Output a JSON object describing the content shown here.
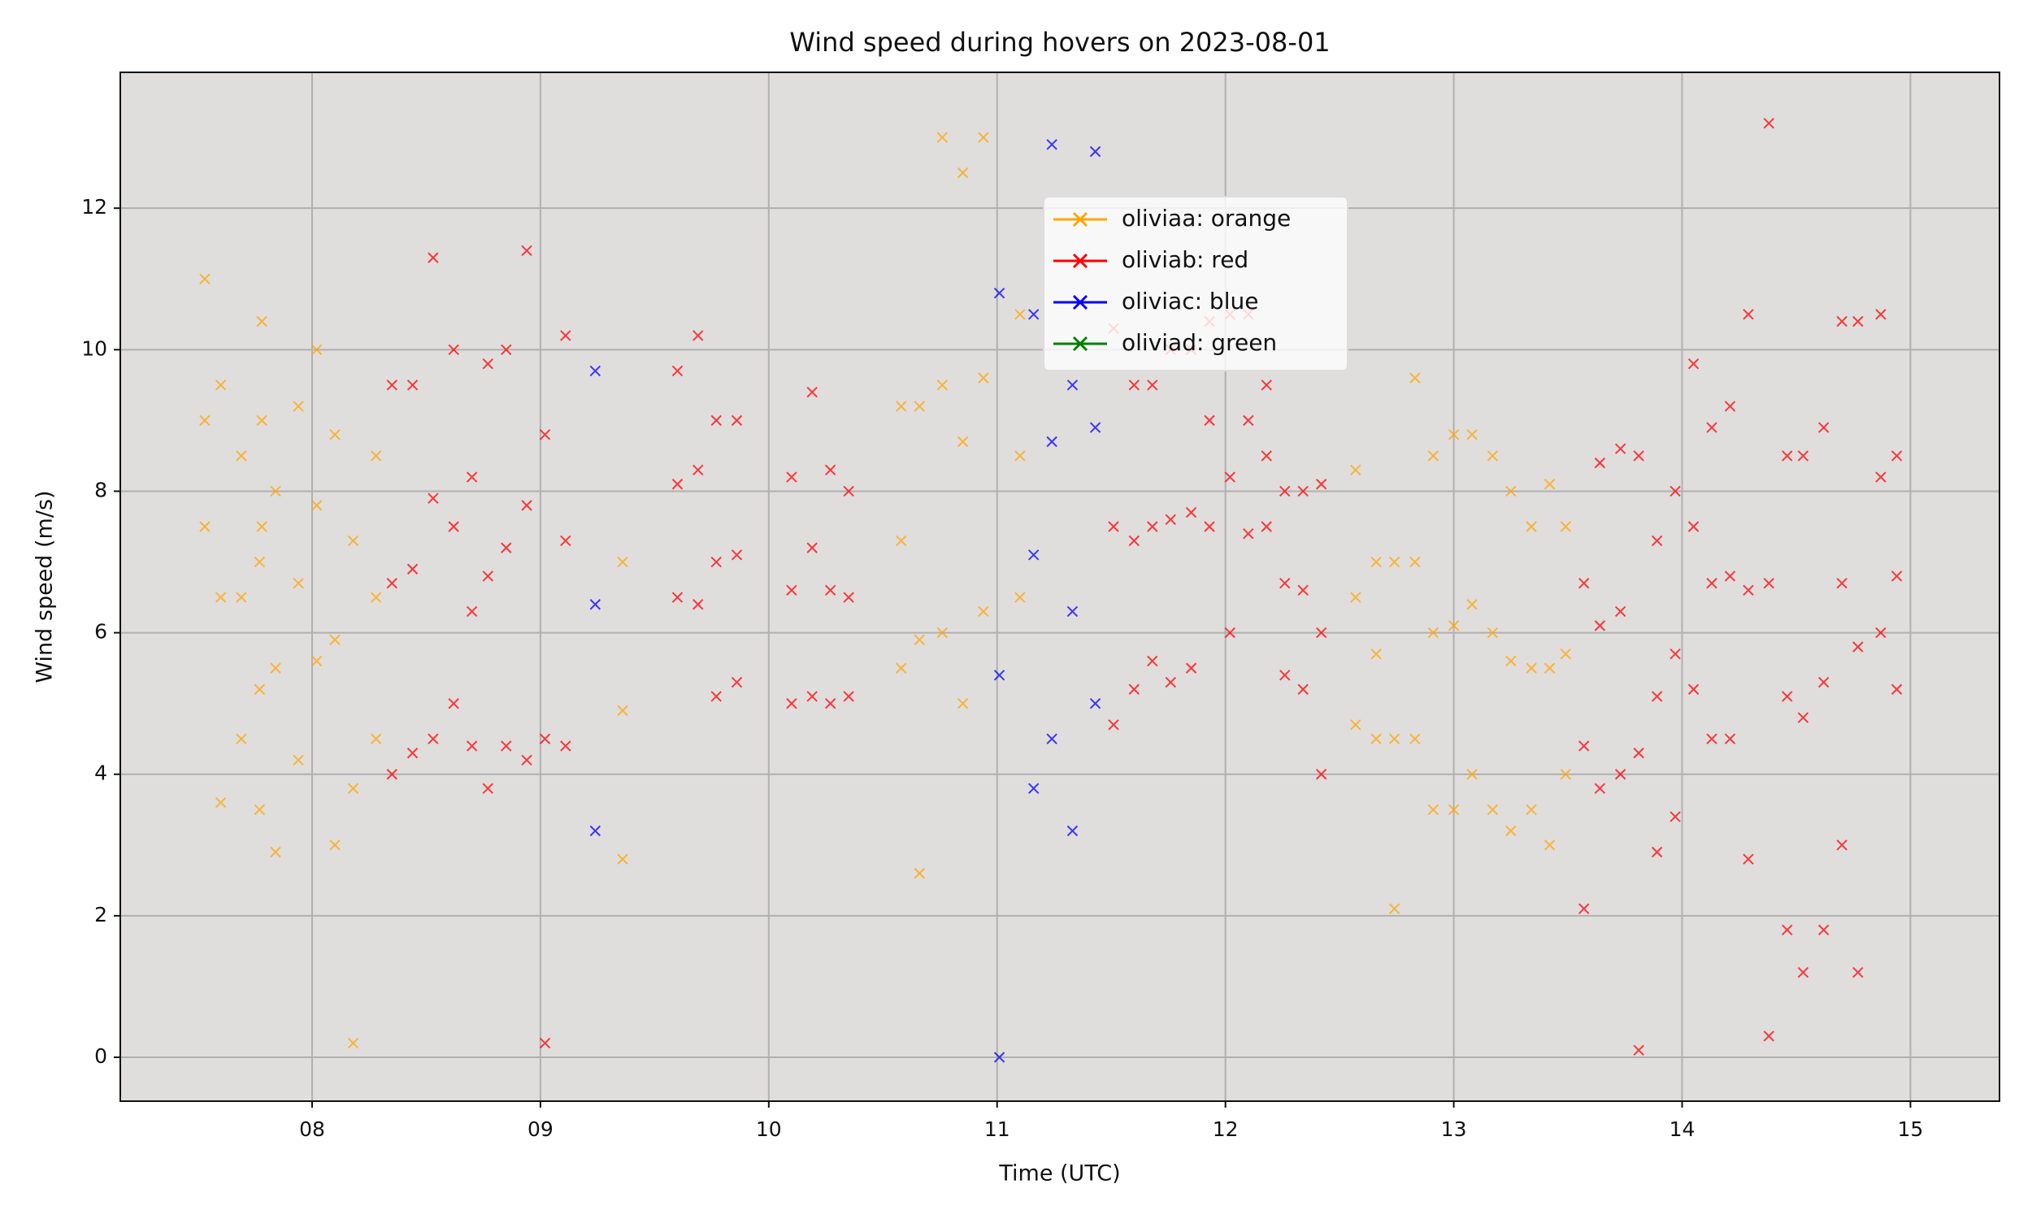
{
  "chart_data": {
    "type": "scatter",
    "title": "Wind speed during hovers on 2023-08-01",
    "x_label": "Time (UTC)",
    "y_label": "Wind speed (m/s)",
    "xlim": [
      7.16,
      15.39
    ],
    "ylim": [
      -0.62,
      13.92
    ],
    "xticks": [
      {
        "value": 8,
        "label": "08"
      },
      {
        "value": 9,
        "label": "09"
      },
      10,
      11,
      12,
      13,
      14,
      15
    ],
    "yticks": [
      0,
      2,
      4,
      6,
      8,
      10,
      12
    ],
    "grid": true,
    "legend_loc": "upper center",
    "marker": "x",
    "series": [
      {
        "name": "oliviaa: orange",
        "color": "#ffa500",
        "x": [
          7.53,
          7.53,
          7.53,
          7.6,
          7.6,
          7.6,
          7.69,
          7.69,
          7.69,
          7.77,
          7.77,
          7.77,
          7.78,
          7.78,
          7.78,
          7.84,
          7.84,
          7.84,
          7.94,
          7.94,
          7.94,
          8.02,
          8.02,
          8.02,
          8.1,
          8.1,
          8.1,
          8.18,
          8.18,
          8.18,
          8.28,
          8.28,
          8.28,
          9.36,
          9.36,
          9.36,
          10.58,
          10.58,
          10.58,
          10.66,
          10.66,
          10.66,
          10.76,
          10.76,
          10.76,
          10.85,
          10.85,
          10.85,
          10.94,
          10.94,
          10.94,
          11.1,
          11.1,
          11.1,
          12.57,
          12.57,
          12.57,
          12.66,
          12.66,
          12.66,
          12.74,
          12.74,
          12.74,
          12.83,
          12.83,
          12.83,
          12.91,
          12.91,
          12.91,
          13.0,
          13.0,
          13.0,
          13.08,
          13.08,
          13.08,
          13.17,
          13.17,
          13.17,
          13.25,
          13.25,
          13.25,
          13.34,
          13.34,
          13.34,
          13.42,
          13.42,
          13.42,
          13.49,
          13.49,
          13.49
        ],
        "values": [
          7.5,
          9,
          11,
          3.6,
          6.5,
          9.5,
          4.5,
          6.5,
          8.5,
          3.5,
          5.2,
          7,
          7.5,
          9,
          10.4,
          2.9,
          5.5,
          8,
          4.2,
          6.7,
          9.2,
          5.6,
          7.8,
          10,
          3,
          5.9,
          8.8,
          0.2,
          3.8,
          7.3,
          4.5,
          6.5,
          8.5,
          2.8,
          4.9,
          7,
          5.5,
          7.3,
          9.2,
          2.6,
          5.9,
          9.2,
          6,
          9.5,
          13,
          5,
          8.7,
          12.5,
          6.3,
          9.6,
          13,
          6.5,
          8.5,
          10.5,
          4.7,
          6.5,
          8.3,
          4.5,
          5.7,
          7,
          2.1,
          4.5,
          7,
          4.5,
          7,
          9.6,
          3.5,
          6,
          8.5,
          3.5,
          6.1,
          8.8,
          4,
          6.4,
          8.8,
          3.5,
          6,
          8.5,
          3.2,
          5.6,
          8,
          3.5,
          5.5,
          7.5,
          3,
          5.5,
          8.1,
          4,
          5.7,
          7.5
        ]
      },
      {
        "name": "oliviab: red",
        "color": "#ff0000",
        "x": [
          8.35,
          8.35,
          8.35,
          8.44,
          8.44,
          8.44,
          8.53,
          8.53,
          8.53,
          8.62,
          8.62,
          8.62,
          8.7,
          8.7,
          8.7,
          8.77,
          8.77,
          8.77,
          8.85,
          8.85,
          8.85,
          8.94,
          8.94,
          8.94,
          9.02,
          9.02,
          9.02,
          9.11,
          9.11,
          9.11,
          9.6,
          9.6,
          9.6,
          9.69,
          9.69,
          9.69,
          9.77,
          9.77,
          9.77,
          9.86,
          9.86,
          9.86,
          10.1,
          10.1,
          10.1,
          10.19,
          10.19,
          10.19,
          10.27,
          10.27,
          10.27,
          10.35,
          10.35,
          10.35,
          11.51,
          11.51,
          11.51,
          11.6,
          11.6,
          11.6,
          11.68,
          11.68,
          11.68,
          11.76,
          11.76,
          11.76,
          11.85,
          11.85,
          11.85,
          11.93,
          11.93,
          11.93,
          12.02,
          12.02,
          12.02,
          12.1,
          12.1,
          12.1,
          12.18,
          12.18,
          12.18,
          12.26,
          12.26,
          12.26,
          12.34,
          12.34,
          12.34,
          12.42,
          12.42,
          12.42,
          13.57,
          13.57,
          13.57,
          13.64,
          13.64,
          13.64,
          13.73,
          13.73,
          13.73,
          13.81,
          13.81,
          13.81,
          13.89,
          13.89,
          13.89,
          13.97,
          13.97,
          13.97,
          14.05,
          14.05,
          14.05,
          14.13,
          14.13,
          14.13,
          14.21,
          14.21,
          14.21,
          14.29,
          14.29,
          14.29,
          14.38,
          14.38,
          14.38,
          14.46,
          14.46,
          14.46,
          14.53,
          14.53,
          14.53,
          14.62,
          14.62,
          14.62,
          14.7,
          14.7,
          14.7,
          14.77,
          14.77,
          14.77,
          14.87,
          14.87,
          14.87,
          14.94,
          14.94,
          14.94
        ],
        "values": [
          4,
          6.7,
          9.5,
          4.3,
          6.9,
          9.5,
          4.5,
          7.9,
          11.3,
          5,
          7.5,
          10,
          4.4,
          6.3,
          8.2,
          3.8,
          6.8,
          9.8,
          4.4,
          7.2,
          10,
          4.2,
          7.8,
          11.4,
          0.2,
          4.5,
          8.8,
          4.4,
          7.3,
          10.2,
          6.5,
          8.1,
          9.7,
          6.4,
          8.3,
          10.2,
          5.1,
          7,
          9,
          5.3,
          7.1,
          9,
          5,
          6.6,
          8.2,
          5.1,
          7.2,
          9.4,
          5,
          6.6,
          8.3,
          5.1,
          6.5,
          8,
          4.7,
          7.5,
          10.3,
          5.2,
          7.3,
          9.5,
          5.6,
          7.5,
          9.5,
          5.3,
          7.6,
          10,
          5.5,
          7.7,
          10,
          7.5,
          9,
          10.4,
          6,
          8.2,
          10.5,
          7.4,
          9,
          10.5,
          7.5,
          8.5,
          9.5,
          5.4,
          6.7,
          8,
          5.2,
          6.6,
          8,
          4,
          6,
          8.1,
          2.1,
          4.4,
          6.7,
          3.8,
          6.1,
          8.4,
          4,
          6.3,
          8.6,
          0.1,
          4.3,
          8.5,
          2.9,
          5.1,
          7.3,
          3.4,
          5.7,
          8,
          5.2,
          7.5,
          9.8,
          4.5,
          6.7,
          8.9,
          4.5,
          6.8,
          9.2,
          2.8,
          6.6,
          10.5,
          0.3,
          6.7,
          13.2,
          1.8,
          5.1,
          8.5,
          1.2,
          4.8,
          8.5,
          1.8,
          5.3,
          8.9,
          3,
          6.7,
          10.4,
          1.2,
          5.8,
          10.4,
          6,
          8.2,
          10.5,
          5.2,
          6.8,
          8.5
        ]
      },
      {
        "name": "oliviac: blue",
        "color": "#0000ff",
        "x": [
          9.24,
          9.24,
          9.24,
          11.01,
          11.01,
          11.01,
          11.16,
          11.16,
          11.16,
          11.24,
          11.24,
          11.24,
          11.33,
          11.33,
          11.33,
          11.43,
          11.43,
          11.43
        ],
        "values": [
          3.2,
          6.4,
          9.7,
          0,
          5.4,
          10.8,
          3.8,
          7.1,
          10.5,
          4.5,
          8.7,
          12.9,
          3.2,
          6.3,
          9.5,
          5,
          8.9,
          12.8
        ]
      },
      {
        "name": "oliviad: green",
        "color": "#008000",
        "x": [],
        "values": []
      }
    ]
  }
}
